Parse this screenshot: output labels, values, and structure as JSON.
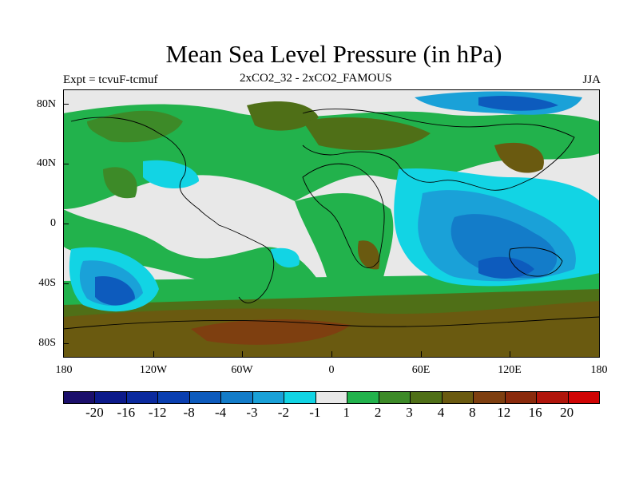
{
  "title": "Mean Sea Level Pressure (in hPa)",
  "subtitle_left": "Expt = tcvuF-tcmuf",
  "subtitle_center": "2xCO2_32 - 2xCO2_FAMOUS",
  "subtitle_right": "JJA",
  "y_axis": {
    "ticks": [
      "80N",
      "40N",
      "0",
      "40S",
      "80S"
    ]
  },
  "x_axis": {
    "ticks": [
      "180",
      "120W",
      "60W",
      "0",
      "60E",
      "120E",
      "180"
    ]
  },
  "colorbar": {
    "colors": [
      "#1b0f6b",
      "#0c1a8a",
      "#0b2a9e",
      "#0a3fb0",
      "#0d5bbd",
      "#137cc9",
      "#1aa1d8",
      "#12d4e4",
      "#e8e8e8",
      "#22b24c",
      "#3d8a28",
      "#4f6f17",
      "#6a5a10",
      "#7e3f10",
      "#8a2a0c",
      "#b0150b",
      "#d00404"
    ],
    "labels": [
      "-20",
      "-16",
      "-12",
      "-8",
      "-4",
      "-3",
      "-2",
      "-1",
      "1",
      "2",
      "3",
      "4",
      "8",
      "12",
      "16",
      "20"
    ]
  },
  "legend_colors": {
    "neutral": "#e8e8e8",
    "green_1_2": "#22b24c",
    "green_2_3": "#3d8a28",
    "olive_3_4": "#4f6f17",
    "brown_4_8": "#6a5a10",
    "brown_8_12": "#7e3f10",
    "cyan": "#12d4e4",
    "blue_2": "#1aa1d8",
    "blue_3": "#137cc9",
    "blue_4": "#0d5bbd"
  }
}
